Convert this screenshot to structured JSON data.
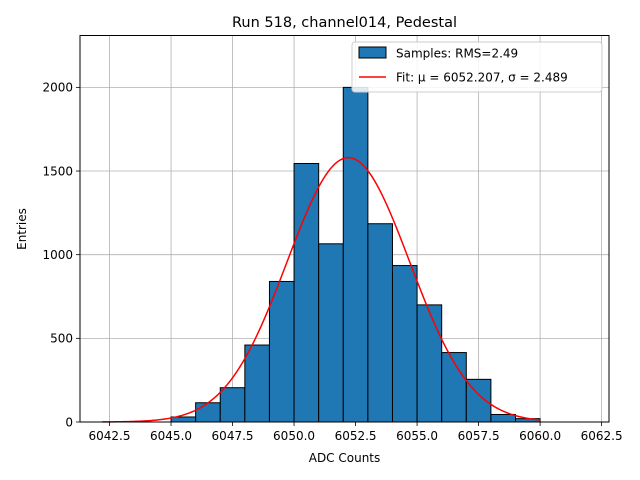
{
  "chart_data": {
    "type": "bar",
    "title": "Run 518, channel014, Pedestal",
    "xlabel": "ADC Counts",
    "ylabel": "Entries",
    "xlim": [
      6041.3,
      6062.8
    ],
    "ylim": [
      0,
      2310
    ],
    "xticks": [
      6042.5,
      6045.0,
      6047.5,
      6050.0,
      6052.5,
      6055.0,
      6057.5,
      6060.0,
      6062.5
    ],
    "xtick_labels": [
      "6042.5",
      "6045.0",
      "6047.5",
      "6050.0",
      "6052.5",
      "6055.0",
      "6057.5",
      "6060.0",
      "6062.5"
    ],
    "yticks": [
      0,
      500,
      1000,
      1500,
      2000
    ],
    "ytick_labels": [
      "0",
      "500",
      "1000",
      "1500",
      "2000"
    ],
    "grid": true,
    "legend_position": "top-right",
    "bar_color": "#1f77b4",
    "fit_color": "#ff0000",
    "series": [
      {
        "name": "Samples: RMS=2.49",
        "kind": "histogram",
        "bin_edges": [
          6045,
          6046,
          6047,
          6048,
          6049,
          6050,
          6051,
          6052,
          6053,
          6054,
          6055,
          6056,
          6057,
          6058,
          6059,
          6060
        ],
        "values": [
          30,
          115,
          205,
          460,
          840,
          1545,
          1065,
          2000,
          1185,
          935,
          700,
          415,
          255,
          45,
          20
        ]
      },
      {
        "name": "Fit: μ = 6052.207, σ = 2.489",
        "kind": "line",
        "fit": {
          "type": "gaussian",
          "mu": 6052.207,
          "sigma": 2.489,
          "amplitude": 1580,
          "x_range": [
            6042.2,
            6060.0
          ]
        }
      }
    ]
  }
}
